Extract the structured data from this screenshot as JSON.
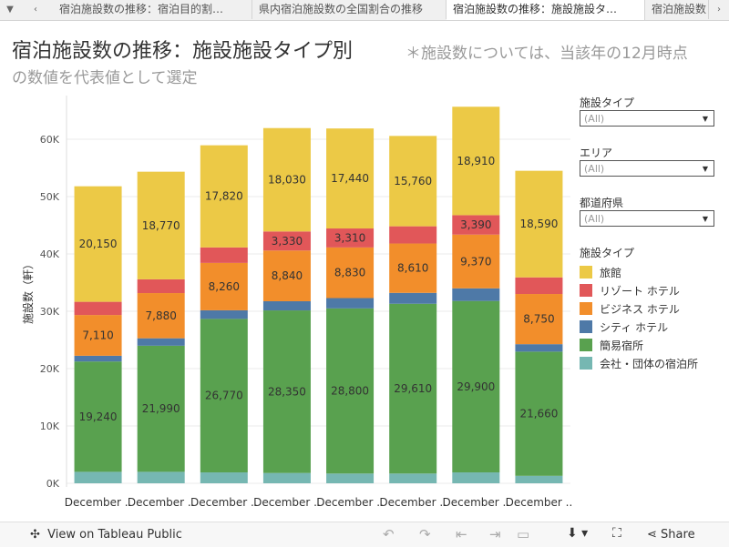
{
  "tabs": [
    {
      "label": "宿泊施設数の推移：宿泊目的割…"
    },
    {
      "label": "県内宿泊施設数の全国割合の推移"
    },
    {
      "label": "宿泊施設数の推移：施設施設タ…"
    },
    {
      "label": "宿泊施設数"
    }
  ],
  "header": {
    "title": "宿泊施設数の推移：施設施設タイプ別",
    "note": "＊施設数については、当該年の12月時点",
    "title_line2": "の数値を代表値として選定"
  },
  "filters": [
    {
      "label": "施設タイプ",
      "value": "(All)"
    },
    {
      "label": "エリア",
      "value": "(All)"
    },
    {
      "label": "都道府県",
      "value": "(All)"
    }
  ],
  "legend": {
    "title": "施設タイプ",
    "items": [
      {
        "name": "旅館",
        "color": "#ecc946"
      },
      {
        "name": "リゾート ホテル",
        "color": "#e15759"
      },
      {
        "name": "ビジネス ホテル",
        "color": "#f28e2b"
      },
      {
        "name": "シティ ホテル",
        "color": "#4e79a7"
      },
      {
        "name": "簡易宿所",
        "color": "#59a14f"
      },
      {
        "name": "会社・団体の宿泊所",
        "color": "#76b7b2"
      }
    ]
  },
  "chart_data": {
    "type": "bar",
    "stacked": true,
    "categories": [
      "December ..",
      "December ..",
      "December ..",
      "December ..",
      "December ..",
      "December ..",
      "December ..",
      "December .."
    ],
    "ylabel": "施設数（軒）",
    "ylim": [
      0,
      70000
    ],
    "yticks": [
      0,
      10000,
      20000,
      30000,
      40000,
      50000,
      60000
    ],
    "ytick_labels": [
      "0K",
      "10K",
      "20K",
      "30K",
      "40K",
      "50K",
      "60K"
    ],
    "series": [
      {
        "name": "会社・団体の宿泊所",
        "values": [
          2000,
          2000,
          1900,
          1800,
          1700,
          1700,
          1900,
          1300
        ],
        "labels": [
          "",
          "",
          "",
          "",
          "",
          "",
          "",
          ""
        ]
      },
      {
        "name": "簡易宿所",
        "values": [
          19240,
          21990,
          26770,
          28350,
          28800,
          29610,
          29900,
          21660
        ],
        "labels": [
          "19,240",
          "21,990",
          "26,770",
          "28,350",
          "28,800",
          "29,610",
          "29,900",
          "21,660"
        ]
      },
      {
        "name": "シティ ホテル",
        "values": [
          1000,
          1300,
          1500,
          1600,
          1800,
          1900,
          2200,
          1300
        ],
        "labels": [
          "",
          "",
          "",
          "",
          "",
          "",
          "",
          ""
        ]
      },
      {
        "name": "ビジネス ホテル",
        "values": [
          7110,
          7880,
          8260,
          8840,
          8830,
          8610,
          9370,
          8750
        ],
        "labels": [
          "7,110",
          "7,880",
          "8,260",
          "8,840",
          "8,830",
          "8,610",
          "9,370",
          "8,750"
        ]
      },
      {
        "name": "リゾート ホテル",
        "values": [
          2300,
          2400,
          2700,
          3330,
          3310,
          3000,
          3390,
          2900
        ],
        "labels": [
          "",
          "",
          "",
          "3,330",
          "3,310",
          "",
          "3,390",
          ""
        ]
      },
      {
        "name": "旅館",
        "values": [
          20150,
          18770,
          17820,
          18030,
          17440,
          15760,
          18910,
          18590
        ],
        "labels": [
          "20,150",
          "18,770",
          "17,820",
          "18,030",
          "17,440",
          "15,760",
          "18,910",
          "18,590"
        ]
      }
    ]
  },
  "footer": {
    "view_label": "View on Tableau Public",
    "share_label": "Share"
  }
}
